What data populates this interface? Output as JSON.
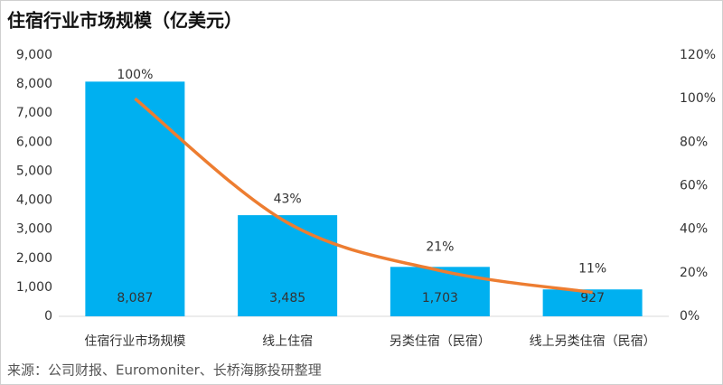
{
  "chart_data": {
    "type": "bar",
    "title": "住宿行业市场规模（亿美元）",
    "source": "来源：公司财报、Euromoniter、长桥海豚投研整理",
    "categories": [
      "住宿行业市场规模",
      "线上住宿",
      "另类住宿（民宿）",
      "线上另类住宿（民宿）"
    ],
    "series": [
      {
        "type": "bar",
        "color": "#00b0f0",
        "values": [
          8087,
          3485,
          1703,
          927
        ],
        "value_labels": [
          "8,087",
          "3,485",
          "1,703",
          "927"
        ]
      },
      {
        "type": "line",
        "axis": "y2",
        "color": "#ed7d31",
        "values": [
          100,
          43,
          21,
          11
        ],
        "value_labels": [
          "100%",
          "43%",
          "21%",
          "11%"
        ]
      }
    ],
    "ylim": [
      0,
      9000
    ],
    "yticks": [
      0,
      {
        "value": 1000,
        "label": "1,000"
      },
      {
        "value": 2000,
        "label": "2,000"
      },
      {
        "value": 3000,
        "label": "3,000"
      },
      {
        "value": 4000,
        "label": "4,000"
      },
      {
        "value": 5000,
        "label": "5,000"
      },
      {
        "value": 6000,
        "label": "6,000"
      },
      {
        "value": 7000,
        "label": "7,000"
      },
      {
        "value": 8000,
        "label": "8,000"
      },
      {
        "value": 9000,
        "label": "9,000"
      }
    ],
    "y2lim": [
      0,
      120
    ],
    "y2ticks": [
      {
        "value": 0,
        "label": "0%"
      },
      {
        "value": 20,
        "label": "20%"
      },
      {
        "value": 40,
        "label": "40%"
      },
      {
        "value": 60,
        "label": "60%"
      },
      {
        "value": 80,
        "label": "80%"
      },
      {
        "value": 100,
        "label": "100%"
      },
      {
        "value": 120,
        "label": "120%"
      }
    ]
  }
}
